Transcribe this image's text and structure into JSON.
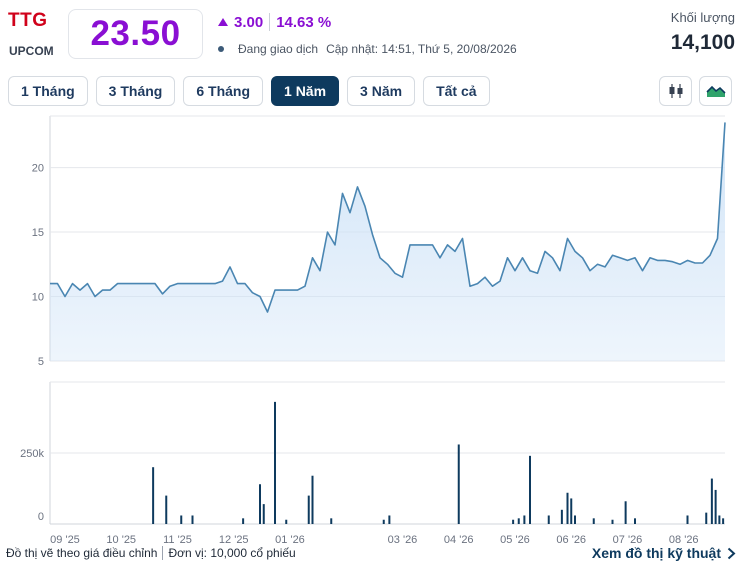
{
  "header": {
    "ticker": "TTG",
    "exchange": "UPCOM",
    "price": "23.50",
    "change": "3.00",
    "change_pct": "14.63 %",
    "status": "Đang giao dịch",
    "updated": "Cập nhật: 14:51, Thứ 5, 20/08/2026",
    "volume_label": "Khối lượng",
    "volume_value": "14,100"
  },
  "tabs": [
    {
      "label": "1 Tháng",
      "active": false
    },
    {
      "label": "3 Tháng",
      "active": false
    },
    {
      "label": "6 Tháng",
      "active": false
    },
    {
      "label": "1 Năm",
      "active": true
    },
    {
      "label": "3 Năm",
      "active": false
    },
    {
      "label": "Tất cả",
      "active": false
    }
  ],
  "icons": {
    "candlestick": "candlestick-chart-icon",
    "area": "area-chart-icon"
  },
  "colors": {
    "accent": "#8a0fd3",
    "ticker": "#d0021b",
    "navy": "#0e3a5e",
    "line": "#4a86b2",
    "fill": "#cfe3f7",
    "volume": "#0e3a5e"
  },
  "chart_data": [
    {
      "type": "area",
      "yticks": [
        5,
        10,
        15,
        20
      ],
      "ylim": [
        5,
        24
      ],
      "x": [
        0,
        4,
        8,
        12,
        16,
        20,
        24,
        28,
        32,
        36,
        40,
        44,
        48,
        52,
        56,
        60,
        64,
        68,
        72,
        76,
        80,
        84,
        88,
        92,
        96,
        100,
        104,
        108,
        112,
        116,
        120,
        124,
        128,
        132,
        136,
        140,
        144,
        148,
        152,
        156,
        160,
        164,
        168,
        172,
        176,
        180,
        184,
        188,
        192,
        196,
        200,
        204,
        208,
        212,
        216,
        220,
        224,
        228,
        232,
        236,
        240,
        244,
        248,
        252,
        256,
        260,
        264,
        268,
        272,
        276,
        280,
        284,
        288,
        292,
        296,
        300,
        304,
        308,
        312,
        316,
        320,
        324,
        328,
        332,
        336,
        340,
        344,
        348,
        352,
        356,
        360
      ],
      "values": [
        11.0,
        11.0,
        10.0,
        11.0,
        10.5,
        11.0,
        10.0,
        10.5,
        10.5,
        11.0,
        11.0,
        11.0,
        11.0,
        11.0,
        11.0,
        10.2,
        10.8,
        11.0,
        11.0,
        11.0,
        11.0,
        11.0,
        11.0,
        11.2,
        12.3,
        11.0,
        11.0,
        10.3,
        10.0,
        8.8,
        10.5,
        10.5,
        10.5,
        10.5,
        10.8,
        13.0,
        12.0,
        15.0,
        14.0,
        18.0,
        16.5,
        18.5,
        17.0,
        14.8,
        13.0,
        12.5,
        11.8,
        11.5,
        14.0,
        14.0,
        14.0,
        14.0,
        13.0,
        14.0,
        13.5,
        14.5,
        10.8,
        11.0,
        11.5,
        10.8,
        11.2,
        13.0,
        12.0,
        13.0,
        12.0,
        11.8,
        13.5,
        13.0,
        12.0,
        14.5,
        13.5,
        13.0,
        12.0,
        12.5,
        12.3,
        13.2,
        13.0,
        12.8,
        13.0,
        12.0,
        13.0,
        12.8,
        12.8,
        12.7,
        12.5,
        12.8,
        12.6,
        12.6,
        13.2,
        14.5,
        23.5
      ],
      "xtick_labels": [
        "09 '25",
        "10 '25",
        "11 '25",
        "12 '25",
        "01 '26",
        "03 '26",
        "04 '26",
        "05 '26",
        "06 '26",
        "07 '26",
        "08 '26"
      ],
      "xtick_positions": [
        8,
        38,
        68,
        98,
        128,
        188,
        218,
        248,
        278,
        308,
        338
      ]
    },
    {
      "type": "bar",
      "yticks": [
        "0",
        "250k"
      ],
      "ylim": [
        0,
        500000
      ],
      "bars": [
        {
          "x": 55,
          "v": 200000
        },
        {
          "x": 62,
          "v": 100000
        },
        {
          "x": 70,
          "v": 30000
        },
        {
          "x": 76,
          "v": 30000
        },
        {
          "x": 103,
          "v": 20000
        },
        {
          "x": 112,
          "v": 140000
        },
        {
          "x": 114,
          "v": 70000
        },
        {
          "x": 120,
          "v": 430000
        },
        {
          "x": 126,
          "v": 15000
        },
        {
          "x": 138,
          "v": 100000
        },
        {
          "x": 140,
          "v": 170000
        },
        {
          "x": 150,
          "v": 20000
        },
        {
          "x": 178,
          "v": 15000
        },
        {
          "x": 181,
          "v": 30000
        },
        {
          "x": 218,
          "v": 280000
        },
        {
          "x": 247,
          "v": 15000
        },
        {
          "x": 250,
          "v": 20000
        },
        {
          "x": 253,
          "v": 30000
        },
        {
          "x": 256,
          "v": 240000
        },
        {
          "x": 266,
          "v": 30000
        },
        {
          "x": 273,
          "v": 50000
        },
        {
          "x": 276,
          "v": 110000
        },
        {
          "x": 278,
          "v": 90000
        },
        {
          "x": 280,
          "v": 30000
        },
        {
          "x": 290,
          "v": 20000
        },
        {
          "x": 300,
          "v": 15000
        },
        {
          "x": 307,
          "v": 80000
        },
        {
          "x": 312,
          "v": 20000
        },
        {
          "x": 340,
          "v": 30000
        },
        {
          "x": 350,
          "v": 40000
        },
        {
          "x": 353,
          "v": 160000
        },
        {
          "x": 355,
          "v": 120000
        },
        {
          "x": 357,
          "v": 30000
        },
        {
          "x": 359,
          "v": 20000
        }
      ]
    }
  ],
  "footer": {
    "note": "Đồ thị vẽ theo giá điều chỉnh",
    "unit": "Đơn vị: 10,000 cổ phiếu",
    "link": "Xem đồ thị kỹ thuật"
  }
}
